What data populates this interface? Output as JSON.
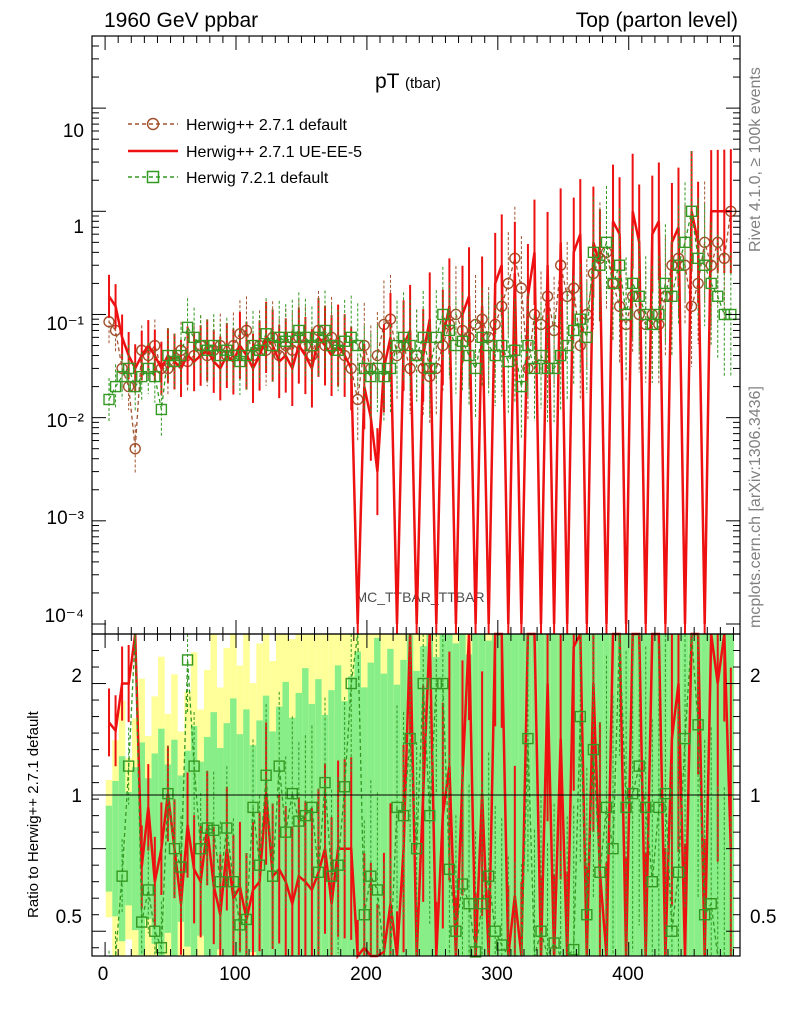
{
  "header": {
    "left": "1960 GeV ppbar",
    "right": "Top (parton level)"
  },
  "side": {
    "rivet": "Rivet 4.1.0, ≥ 100k events",
    "mcplots": "mcplots.cern.ch [arXiv:1306.3436]"
  },
  "watermark": "MC_TTBAR_TTBAR",
  "colors": {
    "h271": "#a0522d",
    "ue": "#ee1111",
    "h721": "#339922",
    "band_green": "#88ee88",
    "band_yellow": "#ffff99"
  },
  "chart_data": {
    "type": "line",
    "title_main": "pT",
    "title_sub": "(tbar)",
    "xlim": [
      -10,
      485
    ],
    "ylim": [
      8e-05,
      50
    ],
    "yscale": "log",
    "xticks": [
      0,
      100,
      200,
      300,
      400
    ],
    "ytick_labels": [
      "10",
      "1",
      "10⁻¹",
      "10⁻²",
      "10⁻³",
      "10⁻⁴"
    ],
    "ratio_ylabel": "Ratio to Herwig++ 2.7.1 default",
    "ratio_ylim": [
      0.35,
      2.3
    ],
    "ratio_yticks": [
      "2",
      "1",
      "0.5"
    ],
    "legend": [
      {
        "name": "Herwig++ 2.7.1 default",
        "style": "dashed-circle"
      },
      {
        "name": "Herwig++ 2.7.1 UE-EE-5",
        "style": "solid"
      },
      {
        "name": "Herwig 7.2.1 default",
        "style": "dashed-square"
      }
    ],
    "series": [
      {
        "name": "Herwig++ 2.7.1 default",
        "x": [
          3,
          8,
          13,
          18,
          23,
          28,
          33,
          38,
          43,
          48,
          53,
          58,
          63,
          68,
          73,
          78,
          83,
          88,
          93,
          98,
          103,
          108,
          113,
          118,
          123,
          128,
          133,
          138,
          143,
          148,
          153,
          158,
          163,
          168,
          173,
          178,
          183,
          188,
          193,
          198,
          203,
          208,
          213,
          218,
          223,
          228,
          233,
          238,
          243,
          248,
          253,
          258,
          263,
          268,
          273,
          278,
          283,
          288,
          293,
          298,
          303,
          308,
          313,
          318,
          323,
          328,
          333,
          338,
          343,
          348,
          353,
          358,
          363,
          368,
          373,
          378,
          383,
          388,
          393,
          398,
          403,
          408,
          413,
          418,
          423,
          428,
          433,
          438,
          443,
          448,
          453,
          458,
          463,
          468,
          473,
          478
        ],
        "values": [
          0.085,
          0.07,
          0.03,
          0.02,
          0.005,
          0.045,
          0.04,
          0.05,
          0.03,
          0.03,
          0.035,
          0.045,
          0.035,
          0.04,
          0.05,
          0.04,
          0.045,
          0.05,
          0.04,
          0.05,
          0.065,
          0.07,
          0.04,
          0.05,
          0.045,
          0.06,
          0.04,
          0.05,
          0.045,
          0.06,
          0.05,
          0.04,
          0.07,
          0.05,
          0.06,
          0.05,
          0.04,
          0.03,
          0.015,
          0.05,
          0.03,
          0.04,
          0.08,
          0.09,
          0.04,
          0.05,
          0.03,
          0.04,
          0.03,
          0.025,
          0.03,
          0.05,
          0.08,
          0.1,
          0.07,
          0.06,
          0.08,
          0.09,
          0.06,
          0.08,
          0.12,
          0.2,
          0.35,
          0.18,
          0.03,
          0.1,
          0.08,
          0.15,
          0.07,
          0.3,
          0.15,
          0.18,
          0.05,
          0.1,
          0.25,
          0.35,
          0.4,
          0.2,
          0.12,
          0.08,
          0.15,
          0.1,
          0.08,
          0.1,
          0.08,
          0.15,
          0.3,
          0.35,
          0.3,
          0.12,
          0.2,
          0.5,
          0.3,
          0.5,
          0.35,
          1.0
        ]
      },
      {
        "name": "Herwig++ 2.7.1 UE-EE-5",
        "x": [
          3,
          8,
          13,
          18,
          23,
          28,
          33,
          38,
          43,
          48,
          53,
          58,
          63,
          68,
          73,
          78,
          83,
          88,
          93,
          98,
          103,
          108,
          113,
          118,
          123,
          128,
          133,
          138,
          143,
          148,
          153,
          158,
          163,
          168,
          173,
          178,
          183,
          188,
          193,
          198,
          203,
          208,
          213,
          218,
          223,
          228,
          233,
          238,
          243,
          248,
          253,
          258,
          263,
          268,
          273,
          278,
          283,
          288,
          293,
          298,
          303,
          308,
          313,
          318,
          323,
          328,
          333,
          338,
          343,
          348,
          353,
          358,
          363,
          368,
          373,
          378,
          383,
          388,
          393,
          398,
          403,
          408,
          413,
          418,
          423,
          428,
          433,
          438,
          443,
          448,
          453,
          458,
          463,
          468,
          473,
          478
        ],
        "values": [
          0.15,
          0.12,
          0.06,
          0.04,
          0.03,
          0.04,
          0.05,
          0.04,
          0.03,
          0.04,
          0.035,
          0.03,
          0.04,
          0.035,
          0.04,
          0.045,
          0.035,
          0.03,
          0.04,
          0.035,
          0.05,
          0.04,
          0.03,
          0.04,
          0.06,
          0.05,
          0.035,
          0.04,
          0.03,
          0.05,
          0.04,
          0.03,
          0.06,
          0.05,
          0.04,
          0.05,
          0.04,
          0.03,
          0.0001,
          0.02,
          0.01,
          0.003,
          0.03,
          0.06,
          0.0001,
          0.05,
          0.07,
          0.0001,
          0.04,
          0.09,
          0.0001,
          0.06,
          0.12,
          0.0001,
          0.1,
          0.15,
          0.0001,
          0.12,
          0.0001,
          0.2,
          0.3,
          0.0001,
          0.25,
          0.0001,
          0.15,
          0.4,
          0.0001,
          0.3,
          0.0001,
          0.5,
          0.0001,
          0.4,
          0.6,
          0.0001,
          0.5,
          0.3,
          0.0001,
          0.8,
          0.6,
          0.0001,
          1.0,
          0.5,
          0.0001,
          0.6,
          0.8,
          0.0001,
          0.5,
          0.7,
          0.0001,
          1.0,
          0.5,
          0.0001,
          1.0,
          1.0,
          1.0,
          1.0
        ]
      },
      {
        "name": "Herwig 7.2.1 default",
        "x": [
          3,
          8,
          13,
          18,
          23,
          28,
          33,
          38,
          43,
          48,
          53,
          58,
          63,
          68,
          73,
          78,
          83,
          88,
          93,
          98,
          103,
          108,
          113,
          118,
          123,
          128,
          133,
          138,
          143,
          148,
          153,
          158,
          163,
          168,
          173,
          178,
          183,
          188,
          193,
          198,
          203,
          208,
          213,
          218,
          223,
          228,
          233,
          238,
          243,
          248,
          253,
          258,
          263,
          268,
          273,
          278,
          283,
          288,
          293,
          298,
          303,
          308,
          313,
          318,
          323,
          328,
          333,
          338,
          343,
          348,
          353,
          358,
          363,
          368,
          373,
          378,
          383,
          388,
          393,
          398,
          403,
          408,
          413,
          418,
          423,
          428,
          433,
          438,
          443,
          448,
          453,
          458,
          463,
          468,
          473,
          478
        ],
        "values": [
          0.015,
          0.02,
          0.025,
          0.03,
          0.02,
          0.025,
          0.03,
          0.025,
          0.012,
          0.04,
          0.035,
          0.04,
          0.075,
          0.06,
          0.05,
          0.045,
          0.05,
          0.04,
          0.045,
          0.04,
          0.035,
          0.04,
          0.05,
          0.045,
          0.065,
          0.05,
          0.06,
          0.055,
          0.06,
          0.07,
          0.06,
          0.05,
          0.06,
          0.07,
          0.05,
          0.045,
          0.055,
          0.06,
          0.05,
          0.03,
          0.025,
          0.03,
          0.025,
          0.03,
          0.05,
          0.06,
          0.05,
          0.04,
          0.06,
          0.03,
          0.06,
          0.1,
          0.07,
          0.05,
          0.055,
          0.04,
          0.03,
          0.06,
          0.05,
          0.04,
          0.05,
          0.035,
          0.045,
          0.02,
          0.05,
          0.03,
          0.04,
          0.03,
          0.03,
          0.04,
          0.05,
          0.07,
          0.09,
          0.06,
          0.4,
          0.3,
          0.5,
          0.2,
          0.3,
          0.1,
          0.2,
          0.15,
          0.1,
          0.08,
          0.1,
          0.2,
          0.15,
          0.3,
          0.5,
          1.0,
          0.35,
          0.3,
          0.2,
          0.15,
          0.1,
          0.1
        ]
      }
    ]
  }
}
